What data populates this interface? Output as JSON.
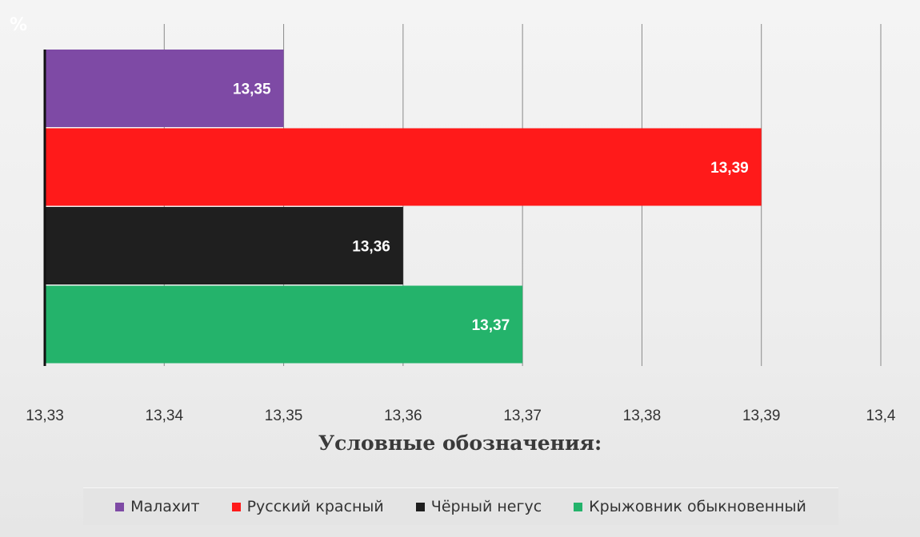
{
  "chart_data": {
    "type": "bar",
    "orientation": "horizontal",
    "unit_label": "%",
    "categories": [
      "Малахит",
      "Русский красный",
      "Чёрный негус",
      "Крыжовник обыкновенный"
    ],
    "values": [
      13.35,
      13.39,
      13.36,
      13.37
    ],
    "data_labels": [
      "13,35",
      "13,39",
      "13,36",
      "13,37"
    ],
    "colors": [
      "#7e4aa5",
      "#ff1a1a",
      "#1f1f1f",
      "#24b36b"
    ],
    "xlim": [
      13.33,
      13.4
    ],
    "xticks": [
      13.33,
      13.34,
      13.35,
      13.36,
      13.37,
      13.38,
      13.39,
      13.4
    ],
    "xtick_labels": [
      "13,33",
      "13,34",
      "13,35",
      "13,36",
      "13,37",
      "13,38",
      "13,39",
      "13,4"
    ],
    "grid": true,
    "legend_position": "bottom"
  },
  "legend": {
    "title": "Условные обозначения:",
    "items": [
      {
        "label": "Малахит",
        "color": "#7e4aa5"
      },
      {
        "label": "Русский красный",
        "color": "#ff1a1a"
      },
      {
        "label": "Чёрный негус",
        "color": "#1f1f1f"
      },
      {
        "label": "Крыжовник обыкновенный",
        "color": "#24b36b"
      }
    ]
  }
}
